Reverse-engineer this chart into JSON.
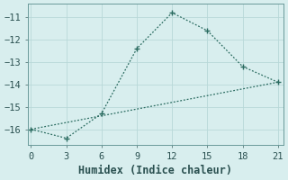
{
  "xlabel": "Humidex (Indice chaleur)",
  "bg_color": "#d8eeee",
  "grid_color": "#b8d8d8",
  "line_color": "#2a6b60",
  "line1_x": [
    0,
    3,
    6,
    9,
    12,
    15,
    18,
    21
  ],
  "line1_y": [
    -16.0,
    -16.4,
    -15.3,
    -12.4,
    -10.8,
    -11.6,
    -13.2,
    -13.9
  ],
  "line2_x": [
    0,
    21
  ],
  "line2_y": [
    -16.0,
    -13.9
  ],
  "xlim": [
    -0.3,
    21.5
  ],
  "ylim": [
    -16.7,
    -10.4
  ],
  "xticks": [
    0,
    3,
    6,
    9,
    12,
    15,
    18,
    21
  ],
  "yticks": [
    -16,
    -15,
    -14,
    -13,
    -12,
    -11
  ],
  "tick_fontsize": 7.5,
  "label_fontsize": 8.5
}
